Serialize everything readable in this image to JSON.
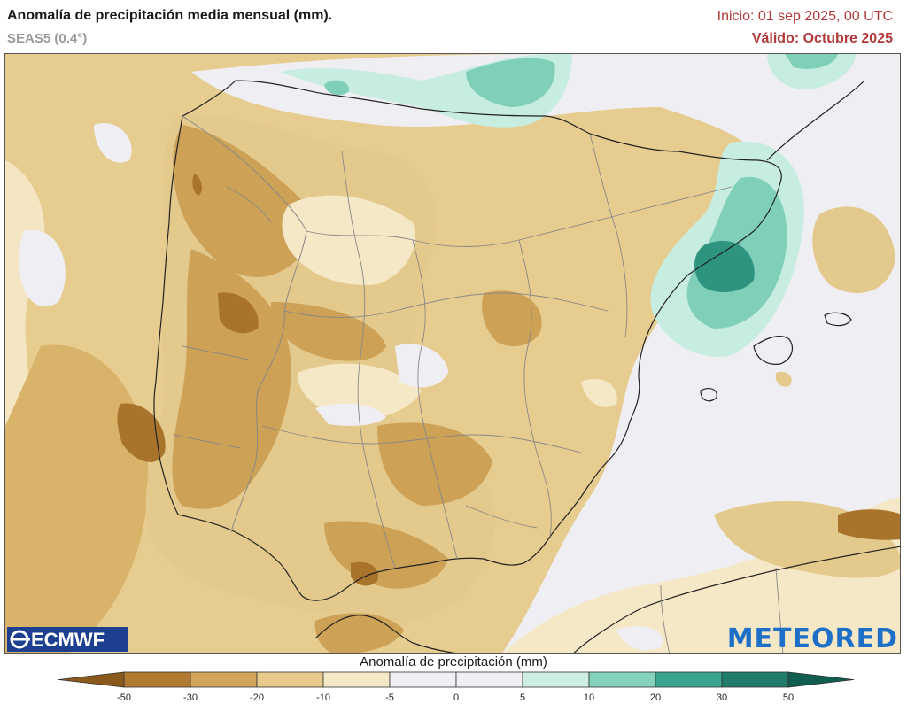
{
  "header": {
    "title": "Anomalía de precipitación media mensual (mm).",
    "model": "SEAS5 (0.4°)",
    "init": "Inicio: 01 sep 2025, 00 UTC",
    "valid": "Válido: Octubre 2025"
  },
  "legend": {
    "title": "Anomalía de precipitación (mm)",
    "ticks": [
      "-50",
      "-30",
      "-20",
      "-10",
      "-5",
      "0",
      "5",
      "10",
      "20",
      "30",
      "50"
    ],
    "colors": [
      "#8a5a1c",
      "#b07a30",
      "#d1a45a",
      "#e6c98b",
      "#f5e8c6",
      "#f0eff5",
      "#f0eff5",
      "#cdeee3",
      "#85d3bd",
      "#3aa68f",
      "#1f7c6a",
      "#0f5e4f"
    ]
  },
  "logos": {
    "left": "ECMWF",
    "right": "METEORED"
  },
  "map_colors": {
    "dry_strong": "#a8732b",
    "dry_moderate": "#cda156",
    "dry_light": "#e4c98c",
    "dry_weak": "#f5e8c6",
    "neutral": "#efeef3",
    "wet_light": "#c7ece0",
    "wet_moderate": "#80cfb8",
    "wet_strong": "#2e9480",
    "border": "#8a8a8a",
    "coast": "#222222"
  }
}
